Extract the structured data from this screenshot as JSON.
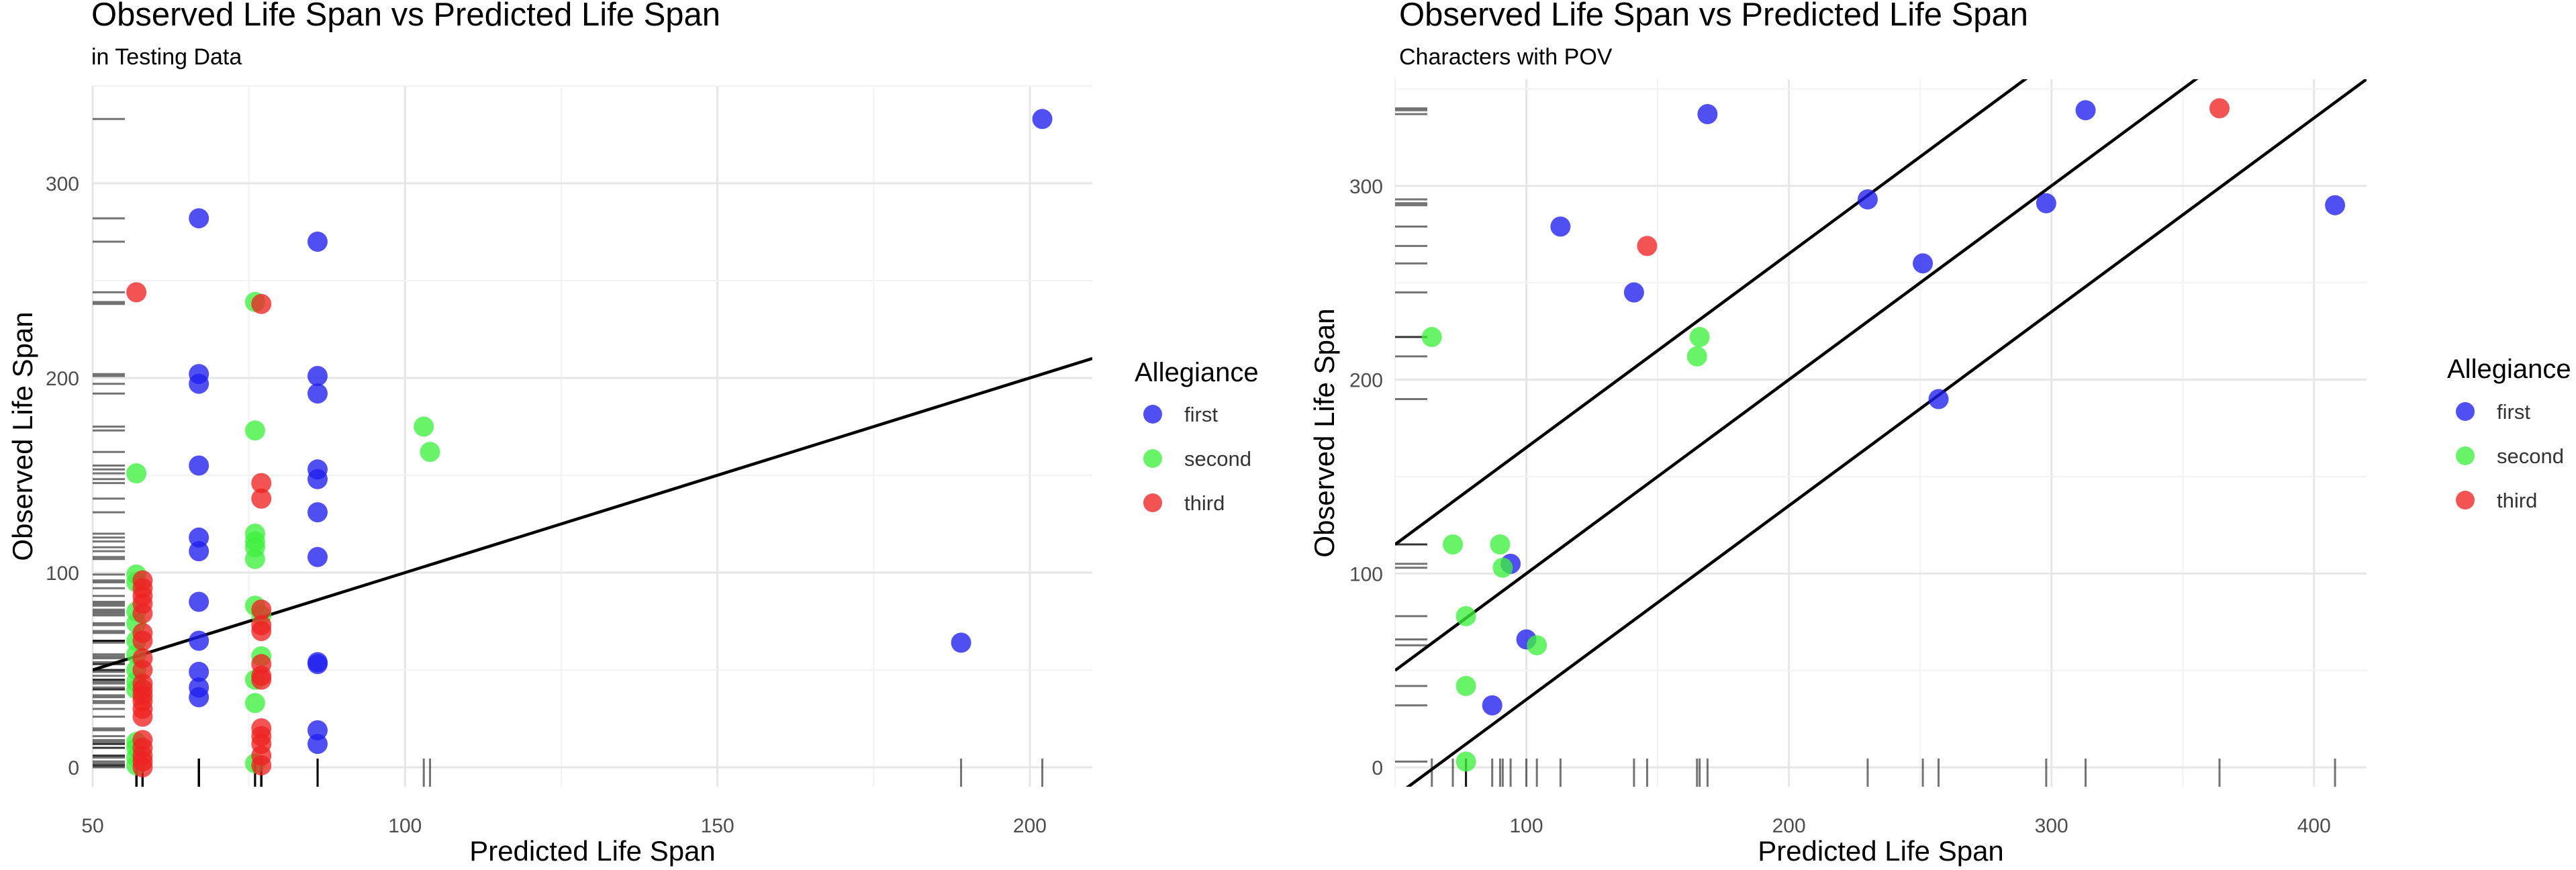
{
  "chart_data": [
    {
      "type": "scatter",
      "title": "Observed Life Span vs Predicted Life Span",
      "subtitle": "in Testing Data",
      "xlabel": "Predicted Life Span",
      "ylabel": "Observed Life Span",
      "xlim": [
        50,
        210
      ],
      "ylim": [
        -10,
        350
      ],
      "xticks": [
        50,
        100,
        150,
        200
      ],
      "yticks": [
        0,
        100,
        200,
        300
      ],
      "grid": true,
      "legend_title": "Allegiance",
      "legend_position": "right",
      "rug": true,
      "lines": [
        {
          "intercept": 0,
          "slope": 1
        }
      ],
      "series": [
        {
          "name": "first",
          "color": "#1f1fee",
          "points": [
            [
              202,
              333
            ],
            [
              67,
              282
            ],
            [
              86,
              270
            ],
            [
              67,
              202
            ],
            [
              67,
              197
            ],
            [
              86,
              201
            ],
            [
              86,
              192
            ],
            [
              67,
              155
            ],
            [
              86,
              153
            ],
            [
              86,
              148
            ],
            [
              86,
              131
            ],
            [
              67,
              118
            ],
            [
              67,
              111
            ],
            [
              86,
              108
            ],
            [
              67,
              85
            ],
            [
              67,
              65
            ],
            [
              86,
              54
            ],
            [
              86,
              53
            ],
            [
              67,
              49
            ],
            [
              67,
              41
            ],
            [
              67,
              36
            ],
            [
              86,
              19
            ],
            [
              86,
              12
            ],
            [
              189,
              64
            ]
          ]
        },
        {
          "name": "second",
          "color": "#3fef3f",
          "points": [
            [
              76,
              239
            ],
            [
              76,
              173
            ],
            [
              103,
              175
            ],
            [
              104,
              162
            ],
            [
              57,
              151
            ],
            [
              76,
              120
            ],
            [
              76,
              116
            ],
            [
              76,
              113
            ],
            [
              76,
              107
            ],
            [
              57,
              99
            ],
            [
              57,
              95
            ],
            [
              76,
              83
            ],
            [
              57,
              80
            ],
            [
              77,
              78
            ],
            [
              57,
              74
            ],
            [
              57,
              65
            ],
            [
              57,
              58
            ],
            [
              77,
              57
            ],
            [
              57,
              50
            ],
            [
              76,
              45
            ],
            [
              57,
              44
            ],
            [
              57,
              40
            ],
            [
              76,
              33
            ],
            [
              57,
              13
            ],
            [
              57,
              10
            ],
            [
              57,
              5
            ],
            [
              76,
              2
            ],
            [
              57,
              1
            ]
          ]
        },
        {
          "name": "third",
          "color": "#ee2222",
          "points": [
            [
              57,
              244
            ],
            [
              77,
              238
            ],
            [
              77,
              146
            ],
            [
              77,
              138
            ],
            [
              58,
              96
            ],
            [
              58,
              92
            ],
            [
              58,
              88
            ],
            [
              58,
              84
            ],
            [
              77,
              81
            ],
            [
              58,
              79
            ],
            [
              77,
              73
            ],
            [
              77,
              70
            ],
            [
              58,
              69
            ],
            [
              58,
              65
            ],
            [
              58,
              56
            ],
            [
              77,
              53
            ],
            [
              58,
              50
            ],
            [
              77,
              47
            ],
            [
              77,
              45
            ],
            [
              58,
              43
            ],
            [
              58,
              40
            ],
            [
              58,
              37
            ],
            [
              58,
              34
            ],
            [
              58,
              30
            ],
            [
              58,
              26
            ],
            [
              77,
              20
            ],
            [
              77,
              16
            ],
            [
              58,
              14
            ],
            [
              77,
              12
            ],
            [
              58,
              10
            ],
            [
              58,
              6
            ],
            [
              77,
              6
            ],
            [
              58,
              3
            ],
            [
              77,
              1
            ],
            [
              58,
              0
            ]
          ]
        }
      ]
    },
    {
      "type": "scatter",
      "title": "Observed Life Span vs Predicted Life Span",
      "subtitle": "Characters with POV",
      "xlabel": "Predicted Life Span",
      "ylabel": "Observed Life Span",
      "xlim": [
        50,
        420
      ],
      "ylim": [
        -10,
        355
      ],
      "xticks": [
        100,
        200,
        300,
        400
      ],
      "yticks": [
        0,
        100,
        200,
        300
      ],
      "grid": true,
      "legend_title": "Allegiance",
      "legend_position": "right",
      "rug": true,
      "lines": [
        {
          "intercept": 65,
          "slope": 1
        },
        {
          "intercept": 0,
          "slope": 1
        },
        {
          "intercept": -65,
          "slope": 1
        }
      ],
      "series": [
        {
          "name": "first",
          "color": "#1f1fee",
          "points": [
            [
              169,
              337
            ],
            [
              313,
              339
            ],
            [
              113,
              279
            ],
            [
              230,
              293
            ],
            [
              298,
              291
            ],
            [
              408,
              290
            ],
            [
              141,
              245
            ],
            [
              251,
              260
            ],
            [
              257,
              190
            ],
            [
              94,
              105
            ],
            [
              100,
              66
            ],
            [
              87,
              32
            ]
          ]
        },
        {
          "name": "second",
          "color": "#3fef3f",
          "points": [
            [
              64,
              222
            ],
            [
              166,
              222
            ],
            [
              165,
              212
            ],
            [
              72,
              115
            ],
            [
              90,
              115
            ],
            [
              91,
              103
            ],
            [
              77,
              78
            ],
            [
              104,
              63
            ],
            [
              77,
              42
            ],
            [
              77,
              3
            ]
          ]
        },
        {
          "name": "third",
          "color": "#ee2222",
          "points": [
            [
              146,
              269
            ],
            [
              364,
              340
            ]
          ]
        }
      ]
    }
  ]
}
